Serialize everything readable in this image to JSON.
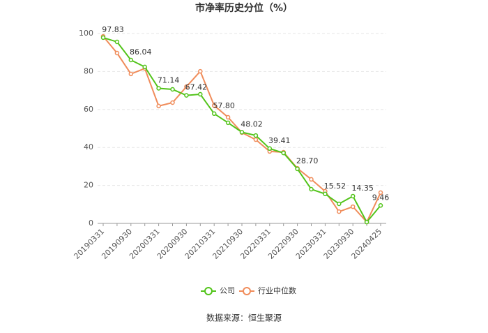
{
  "chart_data": {
    "type": "line",
    "title": "市净率历史分位（%）",
    "categories": [
      "20190331",
      null,
      "20190930",
      null,
      "20200331",
      null,
      "20200930",
      null,
      "20210331",
      null,
      "20210930",
      null,
      "20220331",
      null,
      "20220930",
      null,
      "20230331",
      null,
      "20230930",
      null,
      "20240425"
    ],
    "series": [
      {
        "name": "公司",
        "color": "#52c41a",
        "values": [
          97.83,
          95.6,
          86.04,
          82.4,
          71.14,
          70.6,
          67.42,
          68,
          57.8,
          53,
          48.02,
          46.3,
          39.41,
          37.1,
          28.7,
          18,
          15.52,
          10.3,
          14.35,
          0.7,
          9.46
        ],
        "value_labels": [
          "97.83",
          null,
          "86.04",
          null,
          "71.14",
          null,
          "67.42",
          null,
          "57.80",
          null,
          "48.02",
          null,
          "39.41",
          null,
          "28.70",
          null,
          "15.52",
          null,
          "14.35",
          null,
          "9.46"
        ]
      },
      {
        "name": "行业中位数",
        "color": "#f08c5a",
        "values": [
          98.5,
          89.7,
          78.7,
          81.6,
          61.8,
          63.6,
          72,
          80.1,
          62.1,
          55.9,
          47.8,
          44.1,
          37.9,
          37.5,
          29,
          23.2,
          16.9,
          6.2,
          8.8,
          0.7,
          16.2
        ]
      }
    ],
    "ylim": [
      0,
      100
    ],
    "yticks": [
      0,
      20,
      40,
      60,
      80,
      100
    ],
    "grid": true,
    "source": "数据来源：恒生聚源"
  }
}
